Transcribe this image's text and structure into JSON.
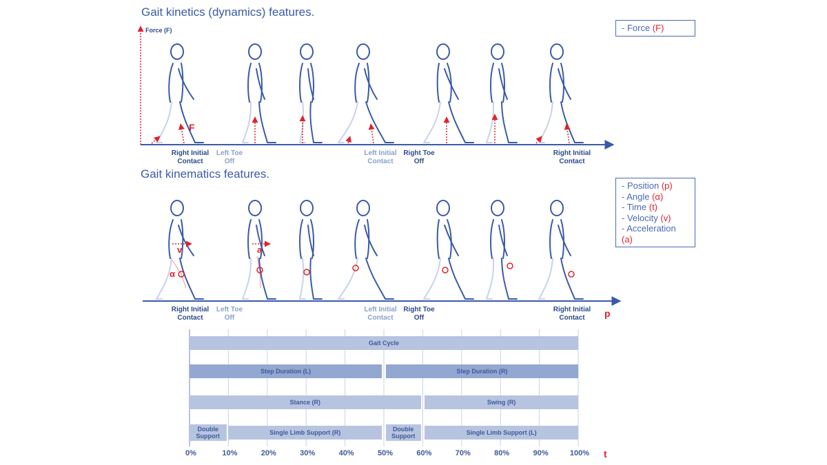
{
  "kinetics": {
    "title": "Gait kinetics (dynamics) features.",
    "axis_label": "Force (F)",
    "force_marker": "F",
    "legend": [
      {
        "prefix": "- Force ",
        "symbol": "(F)"
      }
    ],
    "phases": [
      {
        "label": "Right Initial\nContact",
        "tone": "dark"
      },
      {
        "label": "Left Toe\nOff",
        "tone": "light"
      },
      {
        "label": "Left Initial\nContact",
        "tone": "light"
      },
      {
        "label": "Right Toe\nOff",
        "tone": "dark"
      },
      {
        "label": "Right Initial\nContact",
        "tone": "dark"
      }
    ]
  },
  "kinematics": {
    "title": "Gait kinematics features.",
    "markers": {
      "velocity": "v",
      "acceleration": "a",
      "angle": "α"
    },
    "position_axis": "p",
    "legend": [
      {
        "prefix": "- Position ",
        "symbol": "(p)"
      },
      {
        "prefix": "- Angle ",
        "symbol": "(α)"
      },
      {
        "prefix": "- Time ",
        "symbol": "(t)"
      },
      {
        "prefix": "- Velocity ",
        "symbol": "(v)"
      },
      {
        "prefix": "- Acceleration ",
        "symbol": "(a)"
      }
    ],
    "phases": [
      {
        "label": "Right Initial\nContact",
        "tone": "dark"
      },
      {
        "label": "Left Toe\nOff",
        "tone": "light"
      },
      {
        "label": "Left Initial\nContact",
        "tone": "light"
      },
      {
        "label": "Right Toe\nOff",
        "tone": "dark"
      },
      {
        "label": "Right Initial\nContact",
        "tone": "dark"
      }
    ]
  },
  "timeline": {
    "time_axis": "t",
    "percent_labels": [
      "0%",
      "10%",
      "20%",
      "30%",
      "40%",
      "50%",
      "60%",
      "70%",
      "80%",
      "90%",
      "100%"
    ],
    "bars": [
      {
        "label": "Gait Cycle",
        "start": 0,
        "end": 100,
        "tone": "light",
        "row": 0
      },
      {
        "label": "Step Duration (L)",
        "start": 0,
        "end": 49.5,
        "tone": "dark",
        "row": 1
      },
      {
        "label": "Step Duration (R)",
        "start": 50.5,
        "end": 100,
        "tone": "dark",
        "row": 1
      },
      {
        "label": "Stance (R)",
        "start": 0,
        "end": 59.5,
        "tone": "light",
        "row": 2
      },
      {
        "label": "Swing (R)",
        "start": 60.5,
        "end": 100,
        "tone": "light",
        "row": 2
      },
      {
        "label": "Double\nSupport",
        "start": 0,
        "end": 9.5,
        "tone": "light",
        "row": 3
      },
      {
        "label": "Single Limb Support (R)",
        "start": 10,
        "end": 49.5,
        "tone": "light",
        "row": 3
      },
      {
        "label": "Double\nSupport",
        "start": 50.5,
        "end": 59.5,
        "tone": "light",
        "row": 3
      },
      {
        "label": "Single Limb Support (L)",
        "start": 60.5,
        "end": 100,
        "tone": "light",
        "row": 3
      }
    ]
  },
  "colors": {
    "accent": "#e0232a",
    "primary": "#3a5aa8",
    "bar_light": "#b7c4e0",
    "bar_dark": "#93a7d1"
  }
}
